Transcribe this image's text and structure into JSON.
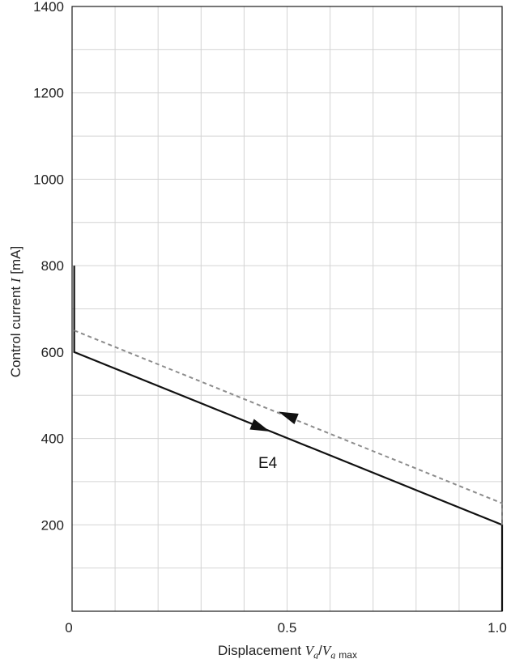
{
  "chart_data": {
    "type": "line",
    "xlabel": {
      "prefix": "Displacement ",
      "v1": "V",
      "v1_sub": "g",
      "slash": "/",
      "v2": "V",
      "v2_sub": "g",
      "v2_sub_tail": "max"
    },
    "ylabel": {
      "prefix": "Control current ",
      "var": "I",
      "unit": " [mA]"
    },
    "xlim": [
      0,
      1.0
    ],
    "ylim": [
      0,
      1400
    ],
    "x_ticks": [
      {
        "value": 0,
        "label": "0"
      },
      {
        "value": 0.5,
        "label": "0.5"
      },
      {
        "value": 1.0,
        "label": "1.0"
      }
    ],
    "y_ticks": [
      {
        "value": 200,
        "label": "200"
      },
      {
        "value": 400,
        "label": "400"
      },
      {
        "value": 600,
        "label": "600"
      },
      {
        "value": 800,
        "label": "800"
      },
      {
        "value": 1000,
        "label": "1000"
      },
      {
        "value": 1200,
        "label": "1200"
      },
      {
        "value": 1400,
        "label": "1400"
      }
    ],
    "grid": {
      "x_step": 0.1,
      "y_step": 100,
      "color": "#d4d4d4"
    },
    "series": [
      {
        "style": "solid",
        "color": "#111111",
        "x": [
          0.005,
          0.005,
          1.0,
          1.0
        ],
        "y": [
          800,
          600,
          200,
          0
        ]
      },
      {
        "style": "dashed",
        "color": "#8c8c8c",
        "x": [
          0.005,
          1.0,
          1.0
        ],
        "y": [
          650,
          250,
          200
        ]
      }
    ],
    "arrows": [
      {
        "x": 0.46,
        "y": 416,
        "direction": "increasing",
        "color": "#111111"
      },
      {
        "x": 0.48,
        "y": 462,
        "direction": "decreasing",
        "color": "#111111"
      }
    ],
    "annotations": [
      {
        "text": "E4",
        "x": 0.455,
        "y": 345
      }
    ]
  }
}
